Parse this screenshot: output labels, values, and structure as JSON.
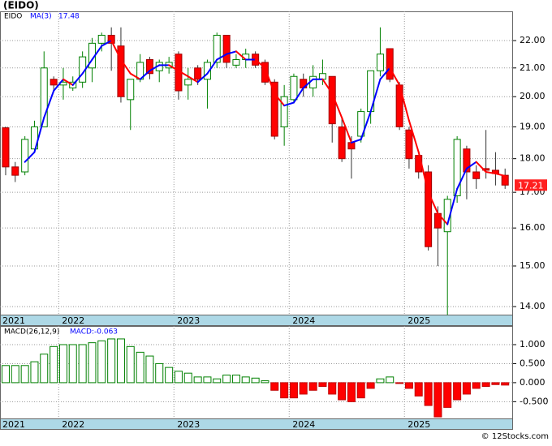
{
  "chart_data": {
    "type": "candlestick",
    "title": "(EIDO)",
    "name": "EIDO",
    "log_scale": true,
    "grid": true,
    "up_color": "#008000",
    "down_color": "#ff0000",
    "last_label": "17.21",
    "x": [
      2021.54,
      2021.623,
      2021.707,
      2021.79,
      2021.873,
      2021.957,
      2022.04,
      2022.123,
      2022.207,
      2022.29,
      2022.373,
      2022.457,
      2022.54,
      2022.623,
      2022.707,
      2022.79,
      2022.873,
      2022.957,
      2023.04,
      2023.123,
      2023.207,
      2023.29,
      2023.373,
      2023.457,
      2023.54,
      2023.623,
      2023.707,
      2023.79,
      2023.873,
      2023.957,
      2024.04,
      2024.123,
      2024.207,
      2024.29,
      2024.373,
      2024.457,
      2024.54,
      2024.623,
      2024.707,
      2024.79,
      2024.873,
      2024.957,
      2025.04,
      2025.123,
      2025.207,
      2025.29,
      2025.373,
      2025.457,
      2025.54,
      2025.623,
      2025.707,
      2025.79,
      2025.873
    ],
    "open": [
      18.97,
      17.75,
      17.6,
      18.3,
      19.0,
      20.6,
      20.4,
      20.3,
      20.5,
      21.0,
      21.9,
      22.2,
      21.8,
      19.9,
      20.6,
      21.3,
      20.9,
      21.0,
      21.5,
      20.4,
      21.0,
      20.6,
      21.2,
      22.2,
      21.1,
      21.3,
      21.5,
      21.2,
      20.5,
      19.0,
      19.9,
      20.6,
      20.3,
      20.6,
      20.7,
      19.0,
      18.5,
      18.7,
      19.5,
      20.9,
      21.7,
      20.4,
      18.9,
      18.1,
      17.6,
      16.4,
      15.9,
      16.9,
      18.3,
      17.6,
      17.7,
      17.65,
      17.5
    ],
    "high": [
      19.0,
      17.9,
      18.7,
      19.2,
      21.6,
      20.7,
      21.0,
      20.7,
      21.6,
      22.1,
      22.3,
      22.5,
      22.5,
      20.6,
      21.5,
      21.4,
      21.3,
      21.4,
      21.6,
      21.0,
      21.1,
      21.3,
      22.3,
      22.2,
      21.5,
      21.7,
      21.6,
      21.3,
      20.6,
      20.4,
      20.8,
      20.8,
      21.1,
      21.3,
      20.7,
      19.3,
      18.7,
      19.6,
      20.9,
      22.5,
      21.7,
      20.5,
      19.0,
      18.1,
      17.8,
      16.6,
      16.9,
      18.7,
      18.4,
      17.8,
      18.9,
      18.2,
      17.7
    ],
    "low": [
      17.5,
      17.3,
      17.5,
      18.2,
      19.0,
      20.2,
      19.9,
      20.2,
      20.3,
      20.5,
      21.6,
      20.9,
      19.8,
      18.9,
      20.5,
      20.6,
      20.5,
      20.8,
      19.9,
      19.9,
      20.4,
      19.6,
      21.0,
      21.0,
      21.0,
      21.0,
      21.0,
      20.4,
      18.6,
      18.4,
      19.8,
      20.0,
      20.0,
      20.4,
      18.5,
      17.9,
      17.4,
      18.5,
      19.1,
      20.7,
      20.5,
      18.9,
      17.7,
      17.4,
      15.4,
      15.0,
      13.8,
      16.7,
      16.8,
      17.1,
      17.4,
      17.2,
      17.1
    ],
    "close": [
      17.75,
      17.5,
      18.6,
      19.0,
      21.0,
      20.4,
      20.5,
      20.5,
      21.4,
      21.9,
      22.2,
      21.9,
      20.0,
      20.6,
      21.2,
      20.8,
      21.2,
      21.2,
      20.2,
      20.6,
      20.6,
      21.2,
      22.2,
      21.2,
      21.3,
      21.5,
      21.1,
      20.5,
      18.7,
      20.0,
      20.7,
      20.3,
      20.7,
      20.8,
      19.1,
      18.0,
      18.3,
      19.5,
      20.9,
      21.5,
      20.6,
      19.0,
      18.0,
      17.6,
      15.5,
      16.0,
      16.8,
      18.6,
      17.6,
      17.4,
      17.65,
      17.55,
      17.21
    ],
    "ylim": [
      13.81,
      23.12
    ],
    "yticks": [
      {
        "value": 14,
        "label": "14.00"
      },
      {
        "value": 15,
        "label": "15.00"
      },
      {
        "value": 16,
        "label": "16.00"
      },
      {
        "value": 17,
        "label": "17.00"
      },
      {
        "value": 18,
        "label": "18.00"
      },
      {
        "value": 19,
        "label": "19.00"
      },
      {
        "value": 20,
        "label": "20.00"
      },
      {
        "value": 21,
        "label": "21.00"
      },
      {
        "value": 22,
        "label": "22.00"
      }
    ],
    "xlim": [
      2021.491,
      2025.942
    ],
    "xticks": [
      2021,
      2022,
      2023,
      2024,
      2025
    ],
    "ma": {
      "name": "MA(3)",
      "last_label": "17.48",
      "up_color": "#0000ff",
      "down_color": "#ff0000",
      "values": [
        null,
        null,
        17.9,
        18.2,
        19.3,
        20.2,
        20.6,
        20.4,
        20.8,
        21.3,
        21.8,
        22.0,
        21.3,
        20.8,
        20.6,
        20.9,
        21.1,
        21.1,
        20.9,
        20.7,
        20.5,
        20.8,
        21.3,
        21.5,
        21.6,
        21.3,
        21.3,
        21.0,
        20.1,
        19.7,
        19.8,
        20.3,
        20.6,
        20.6,
        20.1,
        19.3,
        18.5,
        18.6,
        19.5,
        20.6,
        21.0,
        20.4,
        19.2,
        18.2,
        17.0,
        16.4,
        16.1,
        17.1,
        17.7,
        17.9,
        17.6,
        17.55,
        17.48
      ]
    },
    "macd": {
      "name": "MACD(26,12,9)",
      "last_label": "MACD:-0.063",
      "values": [
        0.45,
        0.45,
        0.45,
        0.55,
        0.75,
        0.95,
        1.0,
        1.0,
        1.0,
        1.05,
        1.1,
        1.15,
        1.15,
        0.95,
        0.8,
        0.7,
        0.5,
        0.4,
        0.3,
        0.25,
        0.15,
        0.15,
        0.1,
        0.2,
        0.2,
        0.15,
        0.12,
        0.05,
        -0.2,
        -0.4,
        -0.4,
        -0.3,
        -0.2,
        -0.1,
        -0.3,
        -0.45,
        -0.5,
        -0.4,
        -0.15,
        0.1,
        0.15,
        -0.02,
        -0.15,
        -0.35,
        -0.6,
        -0.9,
        -0.65,
        -0.45,
        -0.3,
        -0.15,
        -0.1,
        -0.05,
        -0.063
      ],
      "ylim": [
        -0.94,
        1.49
      ],
      "yticks": [
        {
          "value": 1,
          "label": "1.000"
        },
        {
          "value": 0.5,
          "label": "0.500"
        },
        {
          "value": 0,
          "label": "0.000"
        },
        {
          "value": -0.5,
          "label": "-0.500"
        }
      ]
    }
  },
  "footer": "© 12Stocks.com"
}
